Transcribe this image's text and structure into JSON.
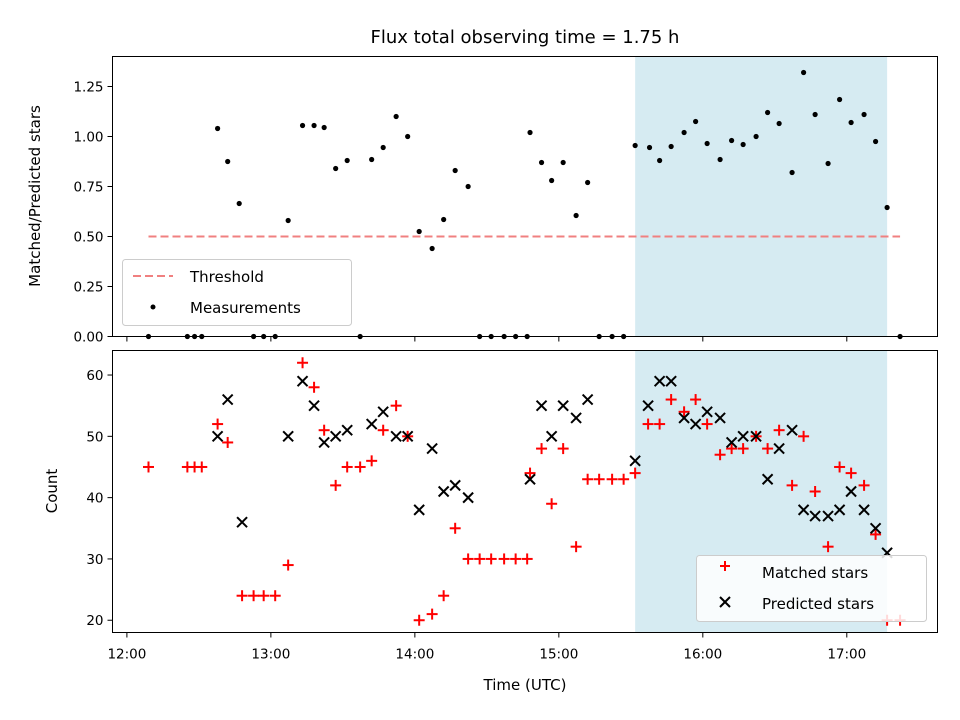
{
  "chart_data": {
    "type": "scatter",
    "title": "Flux total observing time = 1.75 h",
    "xlabel": "Time (UTC)",
    "x_ticks": [
      "12:00",
      "13:00",
      "14:00",
      "15:00",
      "16:00",
      "17:00"
    ],
    "x_tick_hours": [
      12,
      13,
      14,
      15,
      16,
      17
    ],
    "xlim_hours": [
      11.9,
      17.63
    ],
    "highlight_span_hours": [
      15.53,
      17.28
    ],
    "top": {
      "ylabel": "Matched/Predicted stars",
      "ylim": [
        0,
        1.4
      ],
      "y_ticks": [
        "0.00",
        "0.25",
        "0.50",
        "0.75",
        "1.00",
        "1.25"
      ],
      "threshold": {
        "name": "Threshold",
        "value": 0.5,
        "x_range_hours": [
          12.15,
          17.37
        ],
        "color": "#f08080"
      },
      "measurements": {
        "name": "Measurements",
        "color": "#000000",
        "x_hours": [
          12.15,
          12.42,
          12.47,
          12.52,
          12.63,
          12.7,
          12.78,
          12.88,
          12.95,
          13.03,
          13.12,
          13.22,
          13.3,
          13.37,
          13.45,
          13.53,
          13.62,
          13.7,
          13.78,
          13.87,
          13.95,
          14.03,
          14.12,
          14.2,
          14.28,
          14.37,
          14.45,
          14.53,
          14.62,
          14.7,
          14.78,
          14.8,
          14.88,
          14.95,
          15.03,
          15.12,
          15.2,
          15.28,
          15.37,
          15.45,
          15.53,
          15.63,
          15.7,
          15.78,
          15.87,
          15.95,
          16.03,
          16.12,
          16.2,
          16.28,
          16.37,
          16.45,
          16.53,
          16.62,
          16.7,
          16.78,
          16.87,
          16.95,
          17.03,
          17.12,
          17.2,
          17.28,
          17.37
        ],
        "y": [
          0,
          0,
          0,
          0,
          1.04,
          0.875,
          0.665,
          0,
          0,
          0,
          0.58,
          1.055,
          1.055,
          1.045,
          0.84,
          0.88,
          0,
          0.885,
          0.945,
          1.1,
          1.0,
          0.525,
          0.44,
          0.585,
          0.83,
          0.75,
          0,
          0,
          0,
          0,
          0,
          1.02,
          0.87,
          0.78,
          0.87,
          0.605,
          0.77,
          0,
          0,
          0,
          0.955,
          0.945,
          0.88,
          0.95,
          1.02,
          1.075,
          0.965,
          0.885,
          0.98,
          0.96,
          1.0,
          1.12,
          1.065,
          0.82,
          1.32,
          1.11,
          0.865,
          1.185,
          1.07,
          1.11,
          0.975,
          0.645,
          0
        ]
      }
    },
    "bottom": {
      "ylabel": "Count",
      "ylim": [
        18,
        64
      ],
      "y_ticks": [
        "20",
        "30",
        "40",
        "50",
        "60"
      ],
      "series": [
        {
          "name": "Matched stars",
          "marker": "+",
          "color": "#ff0000",
          "x_hours": [
            12.15,
            12.42,
            12.47,
            12.52,
            12.63,
            12.7,
            12.8,
            12.88,
            12.95,
            13.03,
            13.12,
            13.22,
            13.3,
            13.37,
            13.45,
            13.53,
            13.62,
            13.7,
            13.78,
            13.87,
            13.95,
            14.03,
            14.12,
            14.2,
            14.28,
            14.37,
            14.45,
            14.53,
            14.62,
            14.7,
            14.78,
            14.8,
            14.88,
            14.95,
            15.03,
            15.12,
            15.2,
            15.28,
            15.37,
            15.45,
            15.53,
            15.62,
            15.7,
            15.78,
            15.87,
            15.95,
            16.03,
            16.12,
            16.2,
            16.28,
            16.37,
            16.45,
            16.53,
            16.62,
            16.7,
            16.78,
            16.87,
            16.95,
            17.03,
            17.12,
            17.2,
            17.28,
            17.37
          ],
          "y": [
            45,
            45,
            45,
            45,
            52,
            49,
            24,
            24,
            24,
            24,
            29,
            62,
            58,
            51,
            42,
            45,
            45,
            46,
            51,
            55,
            50,
            20,
            21,
            24,
            35,
            30,
            30,
            30,
            30,
            30,
            30,
            44,
            48,
            39,
            48,
            32,
            43,
            43,
            43,
            43,
            44,
            52,
            52,
            56,
            54,
            56,
            52,
            47,
            48,
            48,
            50,
            48,
            51,
            42,
            50,
            41,
            32,
            45,
            44,
            42,
            34,
            20,
            20
          ]
        },
        {
          "name": "Predicted stars",
          "marker": "x",
          "color": "#000000",
          "x_hours": [
            12.63,
            12.7,
            12.8,
            13.12,
            13.22,
            13.3,
            13.37,
            13.45,
            13.53,
            13.7,
            13.78,
            13.87,
            13.95,
            14.03,
            14.12,
            14.2,
            14.28,
            14.37,
            14.8,
            14.88,
            14.95,
            15.03,
            15.12,
            15.2,
            15.53,
            15.62,
            15.7,
            15.78,
            15.87,
            15.95,
            16.03,
            16.12,
            16.2,
            16.28,
            16.37,
            16.45,
            16.53,
            16.62,
            16.7,
            16.78,
            16.87,
            16.95,
            17.03,
            17.12,
            17.2,
            17.28
          ],
          "y": [
            50,
            56,
            36,
            50,
            59,
            55,
            49,
            50,
            51,
            52,
            54,
            50,
            50,
            38,
            48,
            41,
            42,
            40,
            43,
            55,
            50,
            55,
            53,
            56,
            46,
            55,
            59,
            59,
            53,
            52,
            54,
            53,
            49,
            50,
            50,
            43,
            48,
            51,
            38,
            37,
            37,
            38,
            41,
            38,
            35,
            31
          ]
        }
      ]
    }
  }
}
